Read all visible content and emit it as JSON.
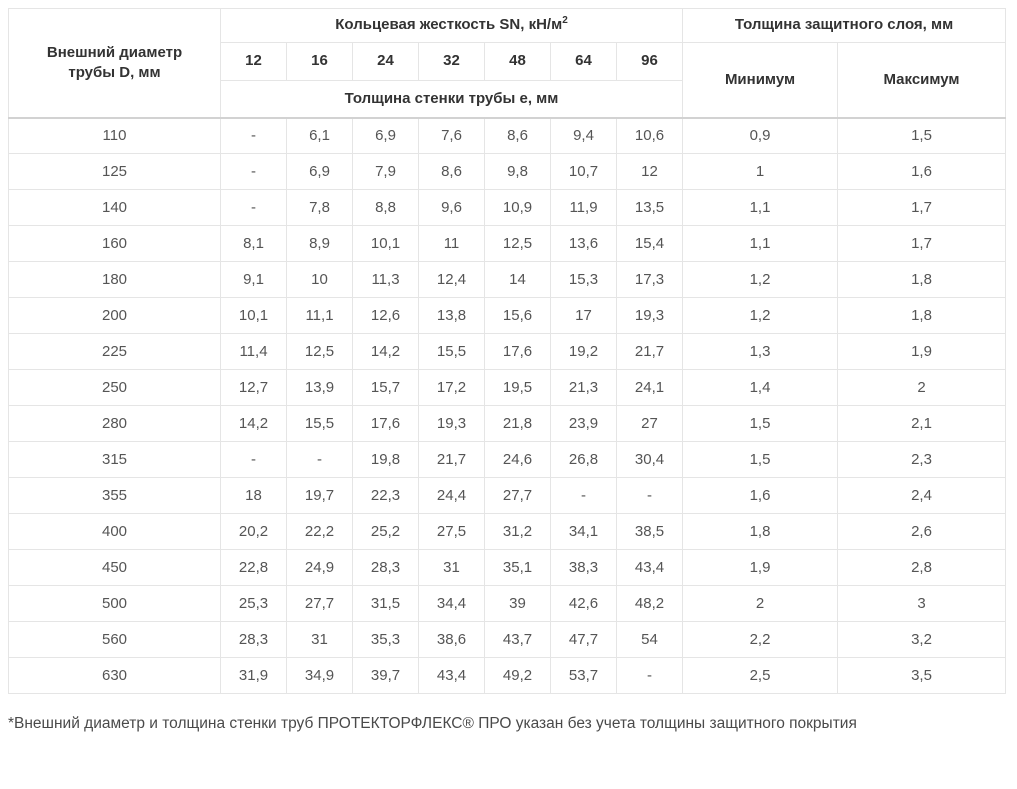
{
  "table": {
    "diameter_header_lines": [
      "Внешний диаметр",
      "трубы D, мм"
    ],
    "ring_stiffness_header": "Кольцевая жесткость SN, кН/м",
    "ring_stiffness_sup": "2",
    "sn_values": [
      "12",
      "16",
      "24",
      "32",
      "48",
      "64",
      "96"
    ],
    "wall_thickness_header": "Толщина стенки трубы е, мм",
    "protective_layer_header": "Толщина защитного слоя, мм",
    "min_header": "Минимум",
    "max_header": "Максимум",
    "rows": [
      [
        "110",
        "-",
        "6,1",
        "6,9",
        "7,6",
        "8,6",
        "9,4",
        "10,6",
        "0,9",
        "1,5"
      ],
      [
        "125",
        "-",
        "6,9",
        "7,9",
        "8,6",
        "9,8",
        "10,7",
        "12",
        "1",
        "1,6"
      ],
      [
        "140",
        "-",
        "7,8",
        "8,8",
        "9,6",
        "10,9",
        "11,9",
        "13,5",
        "1,1",
        "1,7"
      ],
      [
        "160",
        "8,1",
        "8,9",
        "10,1",
        "11",
        "12,5",
        "13,6",
        "15,4",
        "1,1",
        "1,7"
      ],
      [
        "180",
        "9,1",
        "10",
        "11,3",
        "12,4",
        "14",
        "15,3",
        "17,3",
        "1,2",
        "1,8"
      ],
      [
        "200",
        "10,1",
        "11,1",
        "12,6",
        "13,8",
        "15,6",
        "17",
        "19,3",
        "1,2",
        "1,8"
      ],
      [
        "225",
        "11,4",
        "12,5",
        "14,2",
        "15,5",
        "17,6",
        "19,2",
        "21,7",
        "1,3",
        "1,9"
      ],
      [
        "250",
        "12,7",
        "13,9",
        "15,7",
        "17,2",
        "19,5",
        "21,3",
        "24,1",
        "1,4",
        "2"
      ],
      [
        "280",
        "14,2",
        "15,5",
        "17,6",
        "19,3",
        "21,8",
        "23,9",
        "27",
        "1,5",
        "2,1"
      ],
      [
        "315",
        "-",
        "-",
        "19,8",
        "21,7",
        "24,6",
        "26,8",
        "30,4",
        "1,5",
        "2,3"
      ],
      [
        "355",
        "18",
        "19,7",
        "22,3",
        "24,4",
        "27,7",
        "-",
        "-",
        "1,6",
        "2,4"
      ],
      [
        "400",
        "20,2",
        "22,2",
        "25,2",
        "27,5",
        "31,2",
        "34,1",
        "38,5",
        "1,8",
        "2,6"
      ],
      [
        "450",
        "22,8",
        "24,9",
        "28,3",
        "31",
        "35,1",
        "38,3",
        "43,4",
        "1,9",
        "2,8"
      ],
      [
        "500",
        "25,3",
        "27,7",
        "31,5",
        "34,4",
        "39",
        "42,6",
        "48,2",
        "2",
        "3"
      ],
      [
        "560",
        "28,3",
        "31",
        "35,3",
        "38,6",
        "43,7",
        "47,7",
        "54",
        "2,2",
        "3,2"
      ],
      [
        "630",
        "31,9",
        "34,9",
        "39,7",
        "43,4",
        "49,2",
        "53,7",
        "-",
        "2,5",
        "3,5"
      ]
    ]
  },
  "footnote": "*Внешний диаметр и толщина стенки труб ПРОТЕКТОРФЛЕКС® ПРО указан без учета толщины защитного покрытия",
  "colors": {
    "border": "#e5e5e5",
    "header_divider": "#d2d2d2",
    "header_text": "#333333",
    "body_text": "#555555",
    "background": "#ffffff"
  }
}
